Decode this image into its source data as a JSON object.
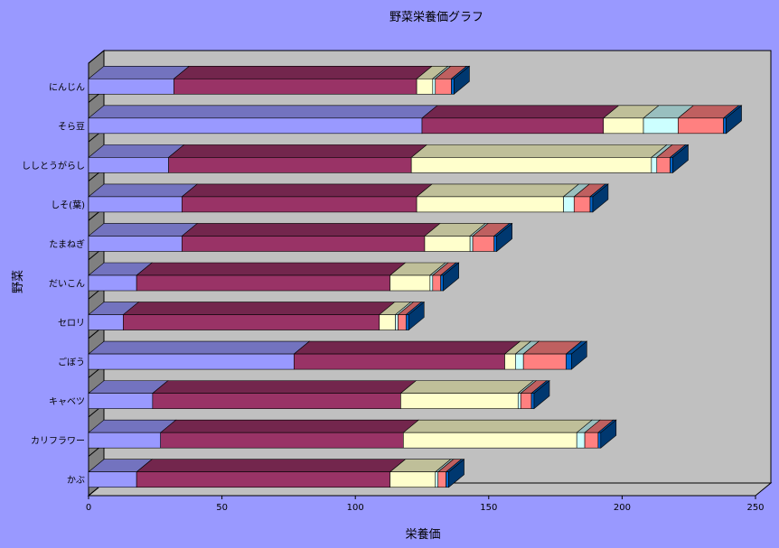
{
  "chart_data": {
    "type": "bar",
    "orientation": "horizontal",
    "stacked": true,
    "style": "3d",
    "title": "野菜栄養価グラフ",
    "xlabel": "栄養価",
    "ylabel": "野菜",
    "xlim": [
      0,
      250
    ],
    "xticks": [
      0,
      50,
      100,
      150,
      200,
      250
    ],
    "grid": false,
    "legend": "none",
    "categories": [
      "にんじん",
      "そら豆",
      "ししとうがらし",
      "しそ(葉)",
      "たまねぎ",
      "だいこん",
      "セロリ",
      "ごぼう",
      "キャベツ",
      "カリフラワー",
      "かぶ"
    ],
    "series": [
      {
        "color": "#9999ff",
        "values": [
          32,
          125,
          30,
          35,
          35,
          18,
          13,
          77,
          24,
          27,
          18
        ]
      },
      {
        "color": "#993366",
        "values": [
          91,
          68,
          91,
          88,
          91,
          95,
          96,
          79,
          93,
          91,
          95
        ]
      },
      {
        "color": "#ffffcc",
        "values": [
          6,
          15,
          90,
          55,
          17,
          15,
          6,
          4,
          44,
          65,
          17
        ]
      },
      {
        "color": "#ccffff",
        "values": [
          1,
          13,
          2,
          4,
          1,
          1,
          1,
          3,
          1,
          3,
          1
        ]
      },
      {
        "color": "#ff8080",
        "values": [
          6,
          17,
          5,
          6,
          8,
          3,
          3,
          16,
          4,
          5,
          3
        ]
      },
      {
        "color": "#0066cc",
        "values": [
          1,
          1,
          1,
          1,
          1,
          1,
          1,
          2,
          1,
          1,
          1
        ]
      }
    ]
  }
}
